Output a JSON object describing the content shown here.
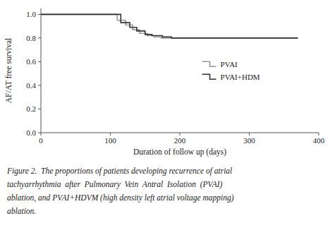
{
  "chart_data": {
    "type": "step",
    "xlabel": "Duration of follow up (days)",
    "ylabel": "AF/AT free survival",
    "series": [
      {
        "name": "PVAI",
        "color": "#999999",
        "x": [
          0,
          110,
          110,
          122,
          122,
          132,
          132,
          142,
          142,
          153,
          153,
          163,
          163,
          173,
          173,
          370
        ],
        "values": [
          1.0,
          1.0,
          0.95,
          0.95,
          0.91,
          0.91,
          0.87,
          0.87,
          0.84,
          0.84,
          0.82,
          0.82,
          0.81,
          0.81,
          0.8,
          0.8
        ]
      },
      {
        "name": "PVAI+HDM",
        "color": "#333333",
        "x": [
          0,
          115,
          115,
          128,
          128,
          138,
          138,
          150,
          150,
          160,
          160,
          175,
          175,
          188,
          188,
          370
        ],
        "values": [
          1.0,
          1.0,
          0.93,
          0.93,
          0.89,
          0.89,
          0.86,
          0.86,
          0.83,
          0.83,
          0.82,
          0.82,
          0.81,
          0.81,
          0.8,
          0.8
        ]
      }
    ],
    "xlim": [
      0,
      400
    ],
    "ylim": [
      0,
      1.05
    ],
    "xticks": [
      0,
      100,
      200,
      300,
      400
    ],
    "yticks": [
      {
        "value": 0,
        "label": "0.0"
      },
      0.2,
      0.4,
      0.6,
      0.8,
      {
        "value": 1.0,
        "label": "1.0"
      }
    ],
    "grid": false,
    "legend": "center",
    "caption": [
      "Figure 2.  The proportions of patients developing recurrence of atrial",
      "tachyarrhythmia  after  Pulmonary  Vein  Antral  Isolation  (PVAI)",
      "ablation, and PVAI+HDVM (high density left atrial voltage mapping)",
      "ablation."
    ]
  }
}
